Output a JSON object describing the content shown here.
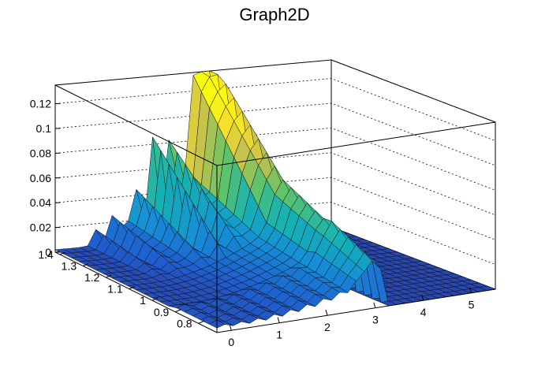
{
  "title": "Graph2D",
  "chart_data": {
    "type": "surface",
    "title": "Graph2D",
    "x_axis": {
      "ticks": [
        "0",
        "1",
        "2",
        "3",
        "4",
        "5"
      ],
      "range": [
        -0.3,
        5.5
      ]
    },
    "y_axis": {
      "ticks": [
        "0.8",
        "0.9",
        "1",
        "1.1",
        "1.2",
        "1.3",
        "1.4"
      ],
      "range": [
        0.72,
        1.42
      ]
    },
    "z_axis": {
      "ticks": [
        "0",
        "0.02",
        "0.04",
        "0.06",
        "0.08",
        "0.1",
        "0.12"
      ],
      "range": [
        0,
        0.135
      ]
    },
    "colormap": [
      "#352a87",
      "#1f5ed0",
      "#1590d6",
      "#15b1b4",
      "#5cc36b",
      "#c2c14d",
      "#f8de2a",
      "#f9fb0e"
    ],
    "surface_description": {
      "baseline_level": 0.0,
      "peak_z": 0.125,
      "ridge_x_range": [
        1.0,
        3.0
      ],
      "wall_x": 3.0,
      "peak_y_range": [
        1.1,
        1.4
      ]
    }
  }
}
